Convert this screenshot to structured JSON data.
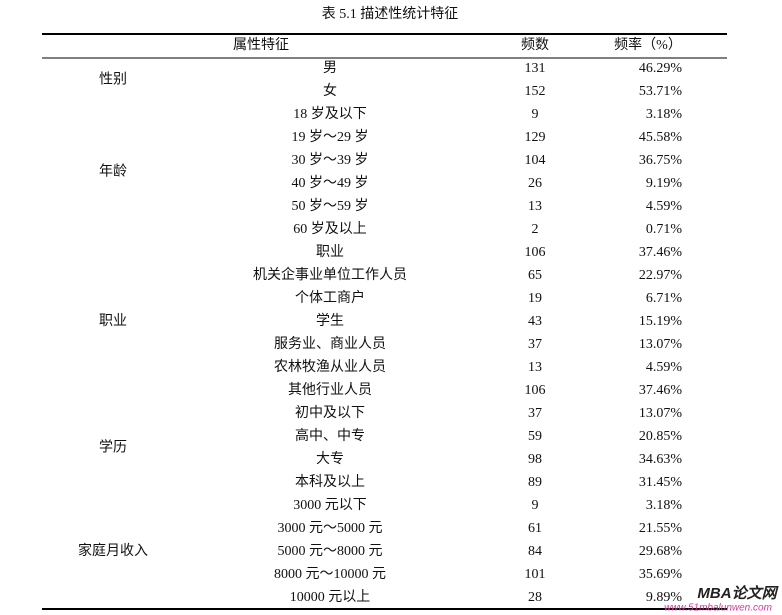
{
  "title": "表 5.1  描述性统计特征",
  "table": {
    "header": [
      "属性特征",
      "频数",
      "频率（%）"
    ],
    "groups": [
      {
        "label": "性别",
        "rows": [
          [
            "男",
            "131",
            "46.29%"
          ],
          [
            "女",
            "152",
            "53.71%"
          ]
        ]
      },
      {
        "label": "年龄",
        "rows": [
          [
            "18 岁及以下",
            "9",
            "3.18%"
          ],
          [
            "19 岁～29 岁",
            "129",
            "45.58%"
          ],
          [
            "30 岁～39 岁",
            "104",
            "36.75%"
          ],
          [
            "40 岁～49 岁",
            "26",
            "9.19%"
          ],
          [
            "50 岁～59 岁",
            "13",
            "4.59%"
          ],
          [
            "60 岁及以上",
            "2",
            "0.71%"
          ]
        ]
      },
      {
        "label": "职业",
        "rows": [
          [
            "职业",
            "106",
            "37.46%"
          ],
          [
            "机关企事业单位工作人员",
            "65",
            "22.97%"
          ],
          [
            "个体工商户",
            "19",
            "6.71%"
          ],
          [
            "学生",
            "43",
            "15.19%"
          ],
          [
            "服务业、商业人员",
            "37",
            "13.07%"
          ],
          [
            "农林牧渔从业人员",
            "13",
            "4.59%"
          ],
          [
            "其他行业人员",
            "106",
            "37.46%"
          ]
        ]
      },
      {
        "label": "学历",
        "rows": [
          [
            "初中及以下",
            "37",
            "13.07%"
          ],
          [
            "高中、中专",
            "59",
            "20.85%"
          ],
          [
            "大专",
            "98",
            "34.63%"
          ],
          [
            "本科及以上",
            "89",
            "31.45%"
          ]
        ]
      },
      {
        "label": "家庭月收入",
        "rows": [
          [
            "3000 元以下",
            "9",
            "3.18%"
          ],
          [
            "3000 元～5000 元",
            "61",
            "21.55%"
          ],
          [
            "5000 元～8000 元",
            "84",
            "29.68%"
          ],
          [
            "8000 元～10000 元",
            "101",
            "35.69%"
          ],
          [
            "10000 元以上",
            "28",
            "9.89%"
          ]
        ]
      }
    ]
  },
  "watermark": {
    "logo": "MBA论文网",
    "url": "www.51mbalunwen.com"
  }
}
